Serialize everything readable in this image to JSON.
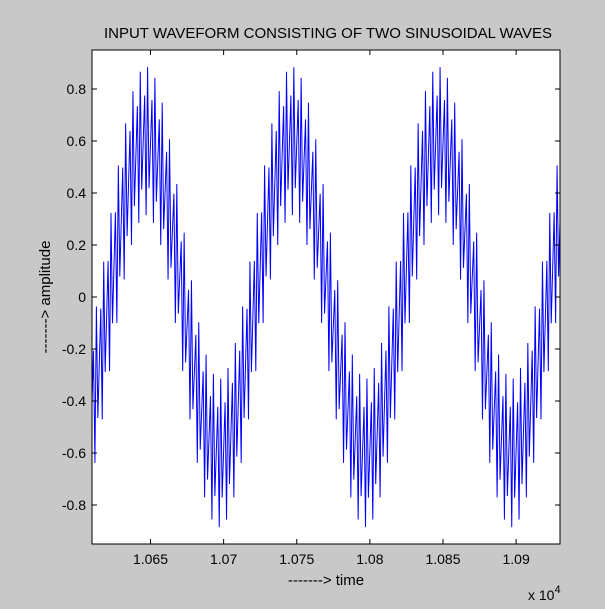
{
  "chart_data": {
    "type": "line",
    "title": "INPUT WAVEFORM CONSISTING OF TWO SINUSOIDAL WAVES",
    "xlabel": "-------> time",
    "ylabel": "-------> amplitude",
    "x_exponent_base": "x 10",
    "x_exponent_power": "4",
    "xlim": [
      10610,
      10930
    ],
    "ylim": [
      -0.95,
      0.95
    ],
    "x_ticks": [
      10650,
      10700,
      10750,
      10800,
      10850,
      10900
    ],
    "x_tick_labels": [
      "1.065",
      "1.07",
      "1.075",
      "1.08",
      "1.085",
      "1.09"
    ],
    "y_ticks": [
      -0.8,
      -0.6,
      -0.4,
      -0.2,
      0,
      0.2,
      0.4,
      0.6,
      0.8
    ],
    "y_tick_labels": [
      "-0.8",
      "-0.6",
      "-0.4",
      "-0.2",
      "0",
      "0.2",
      "0.4",
      "0.6",
      "0.8"
    ],
    "grid": false,
    "series": [
      {
        "color": "#0000ff",
        "x_start": 10610,
        "x_end": 10930,
        "x_step": 1,
        "components": [
          {
            "amplitude": 0.6,
            "period": 100,
            "phase_x": 10622
          },
          {
            "amplitude": 0.3,
            "period": 2.5,
            "phase_x": 10610
          }
        ]
      }
    ]
  }
}
